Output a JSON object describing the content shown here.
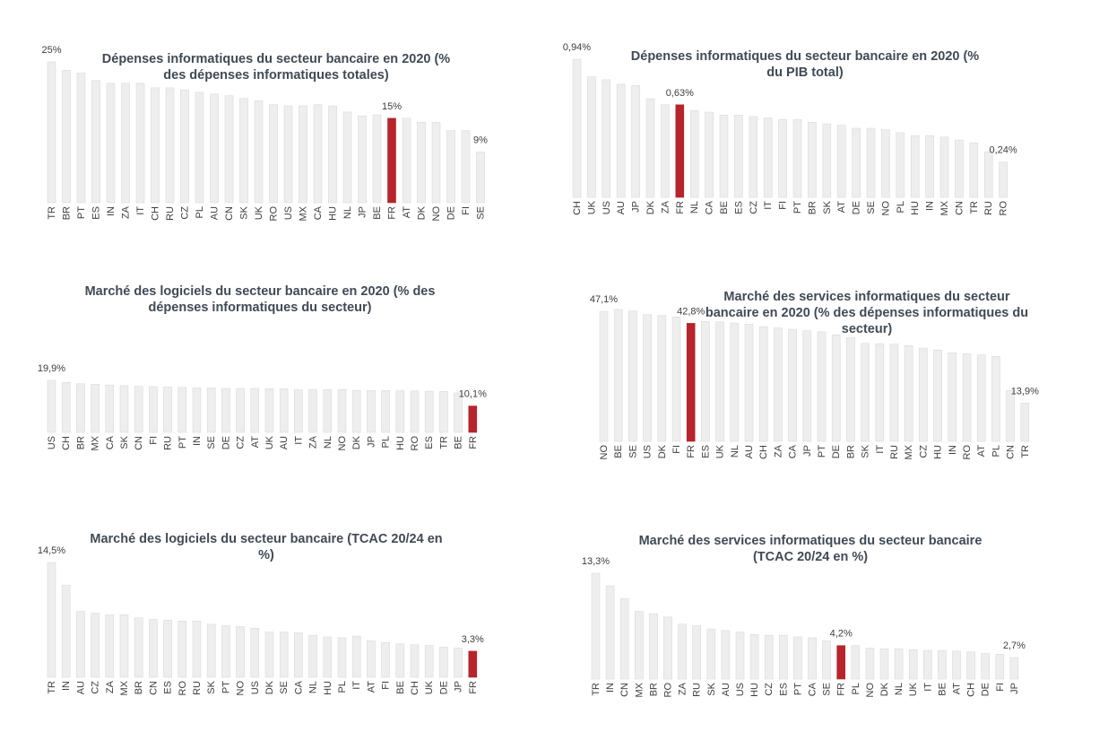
{
  "colors": {
    "bar": "#eeeeee",
    "bar_edge": "#d9d9d9",
    "highlight": "#b5252b",
    "text": "#3d3d3d",
    "title": "#404a56"
  },
  "chart_data": [
    {
      "type": "bar",
      "title": "Dépenses informatiques du secteur bancaire en 2020 (% des dépenses informatiques totales)",
      "categories": [
        "TR",
        "BR",
        "PT",
        "ES",
        "IN",
        "ZA",
        "IT",
        "CH",
        "RU",
        "CZ",
        "PL",
        "AU",
        "CN",
        "SK",
        "UK",
        "RO",
        "US",
        "MX",
        "CA",
        "HU",
        "NL",
        "JP",
        "BE",
        "FR",
        "AT",
        "DK",
        "NO",
        "DE",
        "FI",
        "SE"
      ],
      "values": [
        25,
        23.5,
        23,
        21.7,
        21.2,
        21.2,
        21.2,
        20.4,
        20.4,
        20,
        19.6,
        19.3,
        19,
        18.5,
        18.1,
        17.4,
        17.2,
        17.2,
        17.4,
        17.2,
        16.1,
        15.4,
        15.6,
        15,
        15,
        14.3,
        14.3,
        12.8,
        12.8,
        9
      ],
      "highlight": "FR",
      "value_labels": [
        {
          "category": "TR",
          "text": "25%"
        },
        {
          "category": "FR",
          "text": "15%"
        },
        {
          "category": "SE",
          "text": "9%"
        }
      ]
    },
    {
      "type": "bar",
      "title": "Dépenses informatiques du secteur bancaire en 2020 (% du PIB total)",
      "categories": [
        "CH",
        "UK",
        "US",
        "AU",
        "JP",
        "DK",
        "ZA",
        "FR",
        "NL",
        "CA",
        "BE",
        "ES",
        "CZ",
        "IT",
        "FI",
        "PT",
        "BR",
        "SK",
        "AT",
        "DE",
        "SE",
        "NO",
        "PL",
        "HU",
        "IN",
        "MX",
        "CN",
        "TR",
        "RU",
        "RO"
      ],
      "values": [
        0.94,
        0.82,
        0.8,
        0.77,
        0.76,
        0.67,
        0.63,
        0.63,
        0.59,
        0.58,
        0.56,
        0.56,
        0.55,
        0.54,
        0.53,
        0.53,
        0.51,
        0.5,
        0.49,
        0.47,
        0.47,
        0.46,
        0.44,
        0.42,
        0.42,
        0.41,
        0.39,
        0.37,
        0.31,
        0.24
      ],
      "highlight": "FR",
      "value_labels": [
        {
          "category": "CH",
          "text": "0,94%"
        },
        {
          "category": "FR",
          "text": "0,63%"
        },
        {
          "category": "RO",
          "text": "0,24%"
        }
      ]
    },
    {
      "type": "bar",
      "title": "Marché des logiciels du secteur bancaire en 2020 (% des dépenses informatiques du secteur)",
      "categories": [
        "US",
        "CH",
        "BR",
        "MX",
        "CA",
        "SK",
        "CN",
        "FI",
        "RU",
        "PT",
        "IN",
        "SE",
        "DE",
        "CZ",
        "AT",
        "UK",
        "AU",
        "IT",
        "ZA",
        "NL",
        "NO",
        "DK",
        "JP",
        "PL",
        "HU",
        "RO",
        "ES",
        "TR",
        "BE",
        "FR"
      ],
      "values": [
        19.9,
        19.1,
        18.6,
        18.4,
        18.1,
        17.9,
        17.6,
        17.5,
        17.3,
        17.2,
        17,
        17,
        16.8,
        16.8,
        16.8,
        16.7,
        16.6,
        16.3,
        16.4,
        16.3,
        16.4,
        16.1,
        16,
        16,
        15.9,
        15.8,
        15.7,
        15.6,
        15.1,
        10.1
      ],
      "highlight": "FR",
      "value_labels": [
        {
          "category": "US",
          "text": "19,9%"
        },
        {
          "category": "FR",
          "text": "10,1%"
        }
      ]
    },
    {
      "type": "bar",
      "title": "Marché des services informatiques du secteur bancaire en 2020 (% des dépenses informatiques du secteur)",
      "categories": [
        "NO",
        "BE",
        "SE",
        "US",
        "DK",
        "FI",
        "FR",
        "ES",
        "UK",
        "NL",
        "AU",
        "CH",
        "ZA",
        "CA",
        "JP",
        "PT",
        "DE",
        "BR",
        "SK",
        "IT",
        "RU",
        "MX",
        "CZ",
        "HU",
        "IN",
        "RO",
        "AT",
        "PL",
        "CN",
        "TR"
      ],
      "values": [
        47.1,
        47.8,
        47.2,
        45.9,
        45.6,
        45.1,
        42.8,
        43.4,
        43.3,
        42.9,
        42.5,
        41.6,
        41.1,
        40.6,
        40.1,
        39.7,
        38.6,
        37.6,
        35.5,
        35.4,
        35.2,
        34.7,
        33.8,
        33.1,
        32.1,
        31.7,
        31.3,
        30.8,
        18.4,
        13.9
      ],
      "highlight": "FR",
      "value_labels": [
        {
          "category": "NO",
          "text": "47,1%"
        },
        {
          "category": "FR",
          "text": "42,8%"
        },
        {
          "category": "TR",
          "text": "13,9%"
        }
      ]
    },
    {
      "type": "bar",
      "title": "Marché des logiciels du secteur bancaire (TCAC 20/24 en %)",
      "categories": [
        "TR",
        "IN",
        "AU",
        "CZ",
        "ZA",
        "MX",
        "BR",
        "CN",
        "ES",
        "RO",
        "RU",
        "SK",
        "PT",
        "NO",
        "US",
        "DK",
        "SE",
        "CA",
        "NL",
        "HU",
        "PL",
        "IT",
        "AT",
        "FI",
        "BE",
        "CH",
        "UK",
        "DE",
        "JP",
        "FR"
      ],
      "values": [
        14.5,
        11.6,
        8.3,
        8.1,
        7.9,
        7.9,
        7.5,
        7.3,
        7.2,
        7.1,
        7.1,
        6.7,
        6.5,
        6.4,
        6.2,
        5.7,
        5.7,
        5.6,
        5.3,
        5.1,
        5,
        5.2,
        4.6,
        4.4,
        4.2,
        4.1,
        4,
        3.8,
        3.7,
        3.3
      ],
      "highlight": "FR",
      "value_labels": [
        {
          "category": "TR",
          "text": "14,5%"
        },
        {
          "category": "FR",
          "text": "3,3%"
        }
      ]
    },
    {
      "type": "bar",
      "title": "Marché des services informatiques du secteur bancaire (TCAC 20/24 en %)",
      "categories": [
        "TR",
        "IN",
        "CN",
        "MX",
        "BR",
        "RO",
        "ZA",
        "RU",
        "SK",
        "AU",
        "US",
        "HU",
        "CZ",
        "ES",
        "PT",
        "CA",
        "SE",
        "FR",
        "PL",
        "NO",
        "DK",
        "NL",
        "UK",
        "IT",
        "BE",
        "AT",
        "CH",
        "DE",
        "FI",
        "JP"
      ],
      "values": [
        13.3,
        11.7,
        10.1,
        8.5,
        8.2,
        7.8,
        6.9,
        6.7,
        6.3,
        6.1,
        5.9,
        5.6,
        5.5,
        5.5,
        5.3,
        5.2,
        4.8,
        4.2,
        4.2,
        3.9,
        3.8,
        3.8,
        3.7,
        3.6,
        3.6,
        3.5,
        3.4,
        3.2,
        3.1,
        2.7
      ],
      "highlight": "FR",
      "value_labels": [
        {
          "category": "TR",
          "text": "13,3%"
        },
        {
          "category": "FR",
          "text": "4,2%"
        },
        {
          "category": "JP",
          "text": "2,7%"
        }
      ]
    }
  ]
}
